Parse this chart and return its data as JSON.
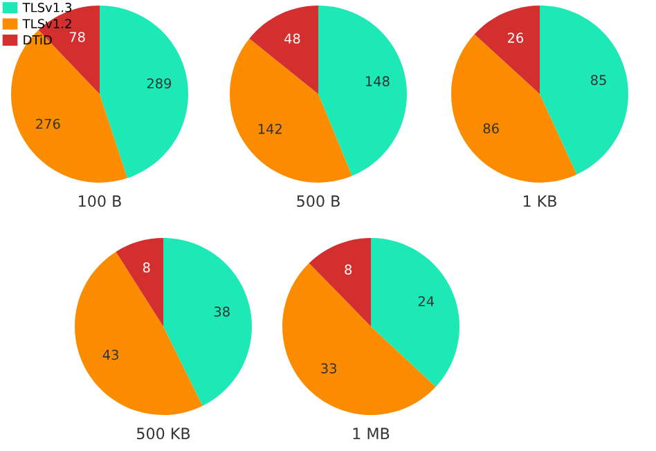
{
  "chart_data": [
    {
      "type": "pie",
      "title": "100 B",
      "categories": [
        "TLSv1.3",
        "TLSv1.2",
        "DTiD"
      ],
      "values": [
        289,
        276,
        78
      ],
      "colors": [
        "#1de9b6",
        "#fb8c00",
        "#d32f2f"
      ],
      "data_labels": true,
      "legend": "top left"
    },
    {
      "type": "pie",
      "title": "500 B",
      "values": [
        148,
        142,
        48
      ],
      "colors": [
        "#1de9b6",
        "#fb8c00",
        "#d32f2f"
      ],
      "data_labels": true
    },
    {
      "type": "pie",
      "title": "1 KB",
      "values": [
        85,
        86,
        26
      ],
      "colors": [
        "#1de9b6",
        "#fb8c00",
        "#d32f2f"
      ],
      "data_labels": true
    },
    {
      "type": "pie",
      "title": "500 KB",
      "values": [
        38,
        43,
        8
      ],
      "colors": [
        "#1de9b6",
        "#fb8c00",
        "#d32f2f"
      ],
      "data_labels": true
    },
    {
      "type": "pie",
      "title": "1 MB",
      "values": [
        24,
        33,
        8
      ],
      "colors": [
        "#1de9b6",
        "#fb8c00",
        "#d32f2f"
      ],
      "data_labels": true
    }
  ]
}
